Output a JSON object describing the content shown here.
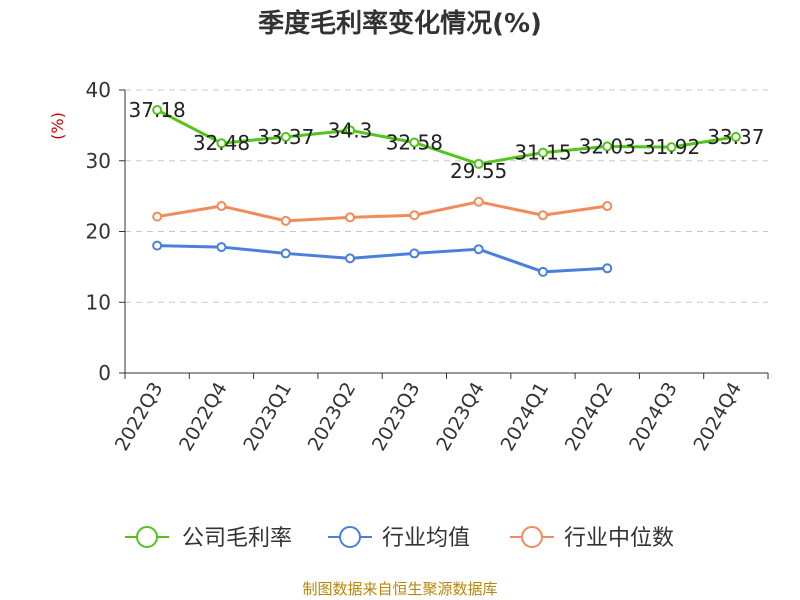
{
  "chart_data": {
    "type": "line",
    "title": "季度毛利率变化情况(%)",
    "unit_label": "(%)",
    "categories": [
      "2022Q3",
      "2022Q4",
      "2023Q1",
      "2023Q2",
      "2023Q3",
      "2023Q4",
      "2024Q1",
      "2024Q2",
      "2024Q3",
      "2024Q4"
    ],
    "ylim": [
      0,
      40
    ],
    "yticks": [
      0,
      10,
      20,
      30,
      40
    ],
    "grid": true,
    "legend_position": "bottom",
    "series": [
      {
        "name": "公司毛利率",
        "color": "#52c41a",
        "values": [
          37.18,
          32.48,
          33.37,
          34.3,
          32.58,
          29.55,
          31.15,
          32.03,
          31.92,
          33.37
        ],
        "labels": [
          "37.18",
          "32.48",
          "33.37",
          "34.3",
          "32.58",
          "29.55",
          "31.15",
          "32.03",
          "31.92",
          "33.37"
        ]
      },
      {
        "name": "行业均值",
        "color": "#4a7fdb",
        "values": [
          18.0,
          17.8,
          16.9,
          16.2,
          16.9,
          17.5,
          14.3,
          14.8,
          null,
          null
        ]
      },
      {
        "name": "行业中位数",
        "color": "#f08c5a",
        "values": [
          22.1,
          23.6,
          21.5,
          22.0,
          22.3,
          24.2,
          22.3,
          23.6,
          null,
          null
        ]
      }
    ]
  },
  "source_text": "制图数据来自恒生聚源数据库"
}
